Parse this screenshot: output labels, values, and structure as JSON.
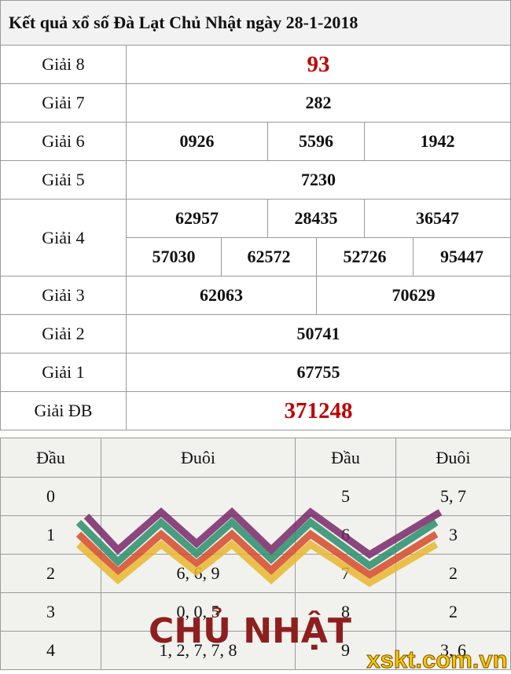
{
  "title": "Kết quả xổ số Đà Lạt Chủ Nhật ngày 28-1-2018",
  "prizes": [
    {
      "label": "Giải 8",
      "numbers": [
        "93"
      ]
    },
    {
      "label": "Giải 7",
      "numbers": [
        "282"
      ]
    },
    {
      "label": "Giải 6",
      "numbers": [
        "0926",
        "5596",
        "1942"
      ]
    },
    {
      "label": "Giải 5",
      "numbers": [
        "7230"
      ]
    },
    {
      "label": "Giải 4",
      "numbers": [
        "62957",
        "28435",
        "36547",
        "57030",
        "62572",
        "52726",
        "95447"
      ]
    },
    {
      "label": "Giải 3",
      "numbers": [
        "62063",
        "70629"
      ]
    },
    {
      "label": "Giải 2",
      "numbers": [
        "50741"
      ]
    },
    {
      "label": "Giải 1",
      "numbers": [
        "67755"
      ]
    },
    {
      "label": "Giải ĐB",
      "numbers": [
        "371248"
      ]
    }
  ],
  "loto": {
    "headers": [
      "Đầu",
      "Đuôi",
      "Đầu",
      "Đuôi"
    ],
    "rows": [
      [
        "0",
        null,
        "5",
        "5, 7"
      ],
      [
        "1",
        null,
        "6",
        "3"
      ],
      [
        "2",
        "6, 6, 9",
        "7",
        "2"
      ],
      [
        "3",
        "0, 0, 5",
        "8",
        "2"
      ],
      [
        "4",
        "1, 2, 7, 7, 8",
        "9",
        "3, 6"
      ]
    ]
  },
  "watermark": {
    "banner": "CHỦ NHẬT",
    "site": "xskt.com.vn"
  }
}
